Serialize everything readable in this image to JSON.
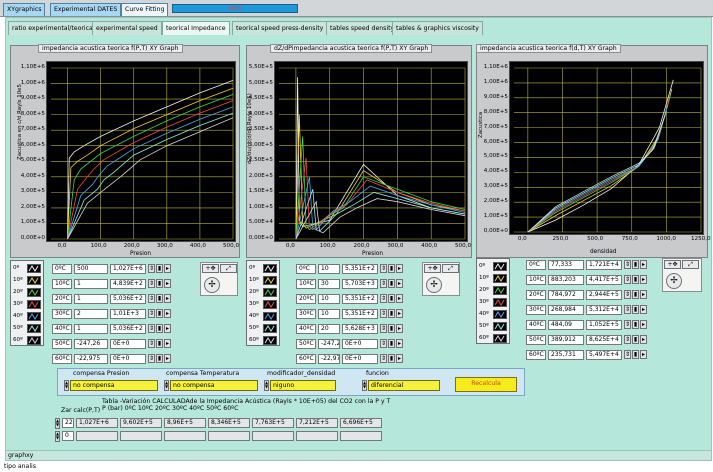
{
  "window": {
    "tabs": [
      "XYgraphics",
      "Experimental DATES",
      "Curve Fitting"
    ],
    "marker": "XXXX"
  },
  "subtabs": [
    "ratio experimental/teorical",
    "experimental speed",
    "teorical Impedance",
    "teorical speed press-density",
    "tables speed density",
    "tables & graphics viscosity"
  ],
  "active_subtab": "teorical Impedance",
  "graphs": [
    {
      "title": "impedancia acustica teorica f(P,T) XY Graph",
      "ylabel": "Zacustica en c/d Rayls 10e5",
      "xlabel": "Presion",
      "yticks": [
        "1,10E+6",
        "1,00E+6",
        "9,00E+5",
        "8,00E+5",
        "7,00E+5",
        "6,00E+5",
        "5,00E+5",
        "4,00E+5",
        "3,00E+5",
        "2,00E+5",
        "1,00E+5",
        "0,00E+0"
      ],
      "xticks": [
        "0,0",
        "100,0",
        "200,0",
        "300,0",
        "400,0",
        "500,0"
      ]
    },
    {
      "title": "dZ/dPimpedancia acustica teorica f(P,T) XY Graph",
      "ylabel": "dZ/du/dt(d/dP Rayls 10e5)",
      "xlabel": "Presion",
      "yticks": [
        "5,50E+5",
        "5,00E+5",
        "4,50E+5",
        "4,00E+5",
        "3,50E+5",
        "3,00E+5",
        "2,50E+5",
        "2,00E+5",
        "1,50E+5",
        "1,00E+5",
        "5,00E+4",
        "0,00E+0"
      ],
      "xticks": [
        "0,0",
        "100,0",
        "200,0",
        "300,0",
        "400,0",
        "500,0"
      ]
    },
    {
      "title": "impedancia acustica teorica f(d,T) XY Graph",
      "ylabel": "Zacustica",
      "xlabel": "densidad",
      "yticks": [
        "1,10E+6",
        "1,00E+6",
        "9,00E+5",
        "8,00E+5",
        "7,00E+5",
        "6,00E+5",
        "5,00E+5",
        "4,00E+5",
        "3,00E+5",
        "2,00E+5",
        "1,00E+5",
        "0,00E+0"
      ],
      "xticks": [
        "0,0",
        "250,0",
        "500,0",
        "750,0",
        "1000,0",
        "1250,0"
      ]
    }
  ],
  "legend_labels": [
    "0º",
    "10º",
    "20º",
    "30º",
    "40º",
    "50º",
    "60º"
  ],
  "series_colors": [
    "#f3f3f3",
    "#f1d12c",
    "#3fd84a",
    "#f04848",
    "#4ba6f4",
    "#8cf0e8",
    "#d7d7d7"
  ],
  "tables": [
    {
      "rows": [
        [
          "0ºC",
          "500",
          "1,027E+6"
        ],
        [
          "10ºC",
          "1",
          "4,839E+2"
        ],
        [
          "20ºC",
          "1",
          "5,036E+2"
        ],
        [
          "30ºC",
          "2",
          "1,01E+3"
        ],
        [
          "40ºC",
          "1",
          "5,036E+2"
        ],
        [
          "50ºC",
          "-247,26",
          "0E+0"
        ],
        [
          "60ºC",
          "-22,975",
          "0E+0"
        ]
      ]
    },
    {
      "rows": [
        [
          "0ºC",
          "10",
          "5,351E+2"
        ],
        [
          "10ºC",
          "30",
          "5,703E+3"
        ],
        [
          "20ºC",
          "10",
          "5,351E+2"
        ],
        [
          "30ºC",
          "10",
          "5,351E+2"
        ],
        [
          "40ºC",
          "20",
          "5,628E+3"
        ],
        [
          "50ºC",
          "-247,2",
          "0E+0"
        ],
        [
          "60ºC",
          "-22,97",
          "0E+0"
        ]
      ]
    },
    {
      "rows": [
        [
          "0ºC",
          "77,333",
          "1,721E+4"
        ],
        [
          "10ºC",
          "883,203",
          "4,417E+5"
        ],
        [
          "20ºC",
          "784,972",
          "2,944E+5"
        ],
        [
          "30ºC",
          "268,984",
          "5,312E+4"
        ],
        [
          "40ºC",
          "484,09",
          "1,052E+5"
        ],
        [
          "50ºC",
          "389,912",
          "8,625E+4"
        ],
        [
          "60ºC",
          "235,731",
          "5,497E+4"
        ]
      ]
    }
  ],
  "controls": {
    "compensa_presion_label": "compensa Presion",
    "compensa_presion_value": "no compensa",
    "compensa_temp_label": "compensa Temperatura",
    "compensa_temp_value": "no compensa",
    "modificador_label": "modificador_densidad",
    "modificador_value": "niguno",
    "funcion_label": "funcion",
    "funcion_value": "diferencial",
    "recalc_label": "Recalcula"
  },
  "bottom_table": {
    "zar_label": "Zar calc(P,T)",
    "desc1": "Tabla -Variación CALCULADAde la Impedancia Acústica (Rayls * 10E+05) del CO2 con la P y T",
    "desc2": "P (bar)  0ºC  10ºC  20ºC  30ºC  40ºC  50ºC  60ºC",
    "idx1": "22",
    "idx2": "0",
    "row1": [
      "1,027E+6",
      "9,602E+5",
      "8,96E+5",
      "8,346E+5",
      "7,763E+5",
      "7,212E+5",
      "6,696E+5"
    ]
  },
  "footer": "graphxy",
  "status": "tipo analis",
  "chart_data": [
    {
      "type": "line",
      "title": "impedancia acustica teorica f(P,T) XY Graph",
      "xlabel": "Presion",
      "ylabel": "Zacustica en c/d Rayls 10e5",
      "xlim": [
        -50,
        500
      ],
      "ylim": [
        0,
        1100000
      ],
      "grid": true,
      "series": [
        {
          "name": "0º",
          "x": [
            0,
            5,
            20,
            50,
            100,
            200,
            300,
            400,
            500
          ],
          "y": [
            0,
            520000,
            560000,
            600000,
            660000,
            760000,
            850000,
            940000,
            1020000
          ]
        },
        {
          "name": "10º",
          "x": [
            0,
            10,
            30,
            60,
            100,
            200,
            300,
            400,
            500
          ],
          "y": [
            0,
            460000,
            500000,
            540000,
            600000,
            710000,
            800000,
            890000,
            970000
          ]
        },
        {
          "name": "20º",
          "x": [
            0,
            20,
            40,
            70,
            100,
            200,
            300,
            400,
            500
          ],
          "y": [
            0,
            380000,
            450000,
            500000,
            550000,
            660000,
            760000,
            850000,
            930000
          ]
        },
        {
          "name": "30º",
          "x": [
            0,
            30,
            60,
            80,
            110,
            200,
            300,
            400,
            500
          ],
          "y": [
            0,
            320000,
            400000,
            450000,
            510000,
            620000,
            720000,
            810000,
            890000
          ]
        },
        {
          "name": "40º",
          "x": [
            0,
            40,
            75,
            95,
            120,
            200,
            300,
            400,
            500
          ],
          "y": [
            0,
            280000,
            350000,
            410000,
            470000,
            580000,
            680000,
            770000,
            850000
          ]
        },
        {
          "name": "50º",
          "x": [
            0,
            50,
            90,
            110,
            140,
            200,
            300,
            400,
            500
          ],
          "y": [
            0,
            250000,
            320000,
            380000,
            430000,
            540000,
            640000,
            730000,
            810000
          ]
        },
        {
          "name": "60º",
          "x": [
            0,
            60,
            100,
            130,
            160,
            220,
            300,
            400,
            500
          ],
          "y": [
            0,
            230000,
            300000,
            350000,
            400000,
            510000,
            600000,
            690000,
            780000
          ]
        }
      ]
    },
    {
      "type": "line",
      "title": "dZ/dPimpedancia acustica teorica f(P,T) XY Graph",
      "xlabel": "Presion",
      "ylabel": "dZ/du/dt(d/dP Rayls 10e5)",
      "xlim": [
        -50,
        500
      ],
      "ylim": [
        0,
        550000
      ],
      "grid": true,
      "series": [
        {
          "name": "0º",
          "x": [
            0,
            5,
            10,
            20,
            60,
            100,
            200,
            300,
            400,
            500
          ],
          "y": [
            0,
            520000,
            60000,
            40000,
            50000,
            60000,
            240000,
            140000,
            100000,
            80000
          ]
        },
        {
          "name": "10º",
          "x": [
            0,
            10,
            20,
            30,
            80,
            120,
            200,
            300,
            400,
            500
          ],
          "y": [
            0,
            400000,
            50000,
            35000,
            60000,
            80000,
            220000,
            150000,
            110000,
            90000
          ]
        },
        {
          "name": "20º",
          "x": [
            0,
            20,
            30,
            40,
            90,
            140,
            200,
            300,
            400,
            500
          ],
          "y": [
            0,
            330000,
            45000,
            30000,
            70000,
            100000,
            200000,
            160000,
            120000,
            95000
          ]
        },
        {
          "name": "30º",
          "x": [
            0,
            30,
            40,
            50,
            100,
            150,
            210,
            300,
            400,
            500
          ],
          "y": [
            0,
            260000,
            40000,
            30000,
            80000,
            110000,
            190000,
            150000,
            115000,
            90000
          ]
        },
        {
          "name": "40º",
          "x": [
            0,
            40,
            50,
            60,
            110,
            160,
            220,
            300,
            400,
            500
          ],
          "y": [
            0,
            200000,
            35000,
            30000,
            90000,
            120000,
            170000,
            140000,
            110000,
            85000
          ]
        },
        {
          "name": "50º",
          "x": [
            0,
            50,
            60,
            70,
            120,
            170,
            230,
            300,
            400,
            500
          ],
          "y": [
            0,
            160000,
            30000,
            25000,
            80000,
            110000,
            150000,
            130000,
            100000,
            80000
          ]
        },
        {
          "name": "60º",
          "x": [
            0,
            60,
            70,
            80,
            130,
            180,
            240,
            300,
            400,
            500
          ],
          "y": [
            0,
            120000,
            25000,
            20000,
            70000,
            100000,
            130000,
            120000,
            95000,
            75000
          ]
        }
      ]
    },
    {
      "type": "line",
      "title": "impedancia acustica teorica f(d,T) XY Graph",
      "xlabel": "densidad",
      "ylabel": "Zacustica",
      "xlim": [
        -100,
        1250
      ],
      "ylim": [
        0,
        1100000
      ],
      "grid": true,
      "series": [
        {
          "name": "0º",
          "x": [
            0,
            200,
            400,
            600,
            800,
            950,
            1050
          ],
          "y": [
            0,
            80000,
            180000,
            290000,
            450000,
            700000,
            1020000
          ]
        },
        {
          "name": "10º",
          "x": [
            0,
            200,
            400,
            600,
            800,
            950,
            1040
          ],
          "y": [
            0,
            110000,
            210000,
            310000,
            440000,
            650000,
            960000
          ]
        },
        {
          "name": "20º",
          "x": [
            0,
            200,
            400,
            600,
            800,
            940,
            1030
          ],
          "y": [
            0,
            130000,
            230000,
            330000,
            440000,
            620000,
            920000
          ]
        },
        {
          "name": "30º",
          "x": [
            0,
            200,
            400,
            600,
            800,
            930,
            1020
          ],
          "y": [
            0,
            140000,
            240000,
            340000,
            440000,
            600000,
            880000
          ]
        },
        {
          "name": "40º",
          "x": [
            0,
            200,
            400,
            600,
            800,
            920,
            1010
          ],
          "y": [
            0,
            150000,
            250000,
            350000,
            440000,
            580000,
            850000
          ]
        },
        {
          "name": "50º",
          "x": [
            0,
            200,
            400,
            600,
            800,
            910,
            1000
          ],
          "y": [
            0,
            160000,
            260000,
            360000,
            450000,
            560000,
            810000
          ]
        },
        {
          "name": "60º",
          "x": [
            0,
            200,
            400,
            600,
            800,
            900,
            990
          ],
          "y": [
            0,
            170000,
            270000,
            370000,
            460000,
            550000,
            780000
          ]
        }
      ]
    }
  ]
}
